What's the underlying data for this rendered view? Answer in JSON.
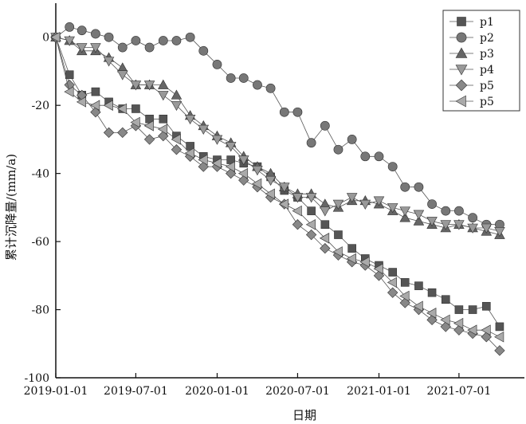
{
  "chart_data": {
    "type": "line",
    "title": "",
    "xlabel": "日期",
    "ylabel": "累计沉降量/(mm/a)",
    "xlim": [
      "2019-01-01",
      "2021-11-26"
    ],
    "ylim": [
      -100,
      10
    ],
    "x_ticks": [
      "2019-01-01",
      "2019-07-01",
      "2020-01-01",
      "2020-07-01",
      "2021-01-01",
      "2021-07-01"
    ],
    "y_ticks": [
      0,
      -20,
      -40,
      -60,
      -80,
      -100
    ],
    "grid": false,
    "legend_position": "top-right",
    "x": [
      "2019-01-01",
      "2019-02-01",
      "2019-03-01",
      "2019-04-01",
      "2019-05-01",
      "2019-06-01",
      "2019-07-01",
      "2019-08-01",
      "2019-09-01",
      "2019-10-01",
      "2019-11-01",
      "2019-12-01",
      "2020-01-01",
      "2020-02-01",
      "2020-03-01",
      "2020-04-01",
      "2020-05-01",
      "2020-06-01",
      "2020-07-01",
      "2020-08-01",
      "2020-09-01",
      "2020-10-01",
      "2020-11-01",
      "2020-12-01",
      "2021-01-01",
      "2021-02-01",
      "2021-03-01",
      "2021-04-01",
      "2021-05-01",
      "2021-06-01",
      "2021-07-01",
      "2021-08-01",
      "2021-09-01",
      "2021-10-01"
    ],
    "series": [
      {
        "name": "p1",
        "marker": "square",
        "color": "#555555",
        "values": [
          0,
          -11,
          -17,
          -16,
          -19,
          -21,
          -21,
          -24,
          -24,
          -29,
          -32,
          -35,
          -36,
          -36,
          -37,
          -38,
          -41,
          -45,
          -47,
          -51,
          -55,
          -58,
          -62,
          -65,
          -67,
          -69,
          -72,
          -73,
          -75,
          -77,
          -80,
          -80,
          -79,
          -85
        ]
      },
      {
        "name": "p2",
        "marker": "circle",
        "color": "#777777",
        "values": [
          0,
          3,
          2,
          1,
          0,
          -3,
          -1,
          -3,
          -1,
          -1,
          0,
          -4,
          -8,
          -12,
          -12,
          -14,
          -15,
          -22,
          -22,
          -31,
          -26,
          -33,
          -30,
          -35,
          -35,
          -38,
          -44,
          -44,
          -49,
          -51,
          -51,
          -53,
          -55,
          -55
        ]
      },
      {
        "name": "p3",
        "marker": "triangle-up",
        "color": "#666666",
        "values": [
          0,
          -1,
          -4,
          -4,
          -6,
          -9,
          -14,
          -14,
          -14,
          -17,
          -23,
          -26,
          -29,
          -31,
          -35,
          -38,
          -40,
          -44,
          -46,
          -46,
          -49,
          -50,
          -48,
          -48,
          -49,
          -51,
          -53,
          -54,
          -55,
          -56,
          -55,
          -56,
          -57,
          -58
        ]
      },
      {
        "name": "p4",
        "marker": "triangle-down",
        "color": "#999999",
        "values": [
          0,
          -1,
          -3,
          -3,
          -7,
          -11,
          -14,
          -14,
          -17,
          -20,
          -24,
          -27,
          -30,
          -32,
          -36,
          -39,
          -42,
          -44,
          -47,
          -47,
          -51,
          -49,
          -47,
          -49,
          -48,
          -50,
          -51,
          -52,
          -54,
          -55,
          -55,
          -56,
          -56,
          -57
        ]
      },
      {
        "name": "p5",
        "marker": "diamond",
        "color": "#888888",
        "values": [
          0,
          -14,
          -17,
          -22,
          -28,
          -28,
          -26,
          -30,
          -29,
          -33,
          -35,
          -38,
          -38,
          -40,
          -42,
          -44,
          -47,
          -49,
          -55,
          -58,
          -62,
          -64,
          -66,
          -67,
          -70,
          -75,
          -78,
          -80,
          -83,
          -85,
          -86,
          -87,
          -88,
          -92
        ]
      },
      {
        "name": "p5",
        "marker": "triangle-left",
        "color": "#aaaaaa",
        "values": [
          0,
          -16,
          -19,
          -20,
          -20,
          -21,
          -25,
          -26,
          -27,
          -30,
          -34,
          -36,
          -37,
          -38,
          -40,
          -43,
          -46,
          -49,
          -51,
          -55,
          -59,
          -63,
          -65,
          -66,
          -68,
          -72,
          -76,
          -79,
          -81,
          -83,
          -84,
          -86,
          -86,
          -88
        ]
      }
    ]
  }
}
